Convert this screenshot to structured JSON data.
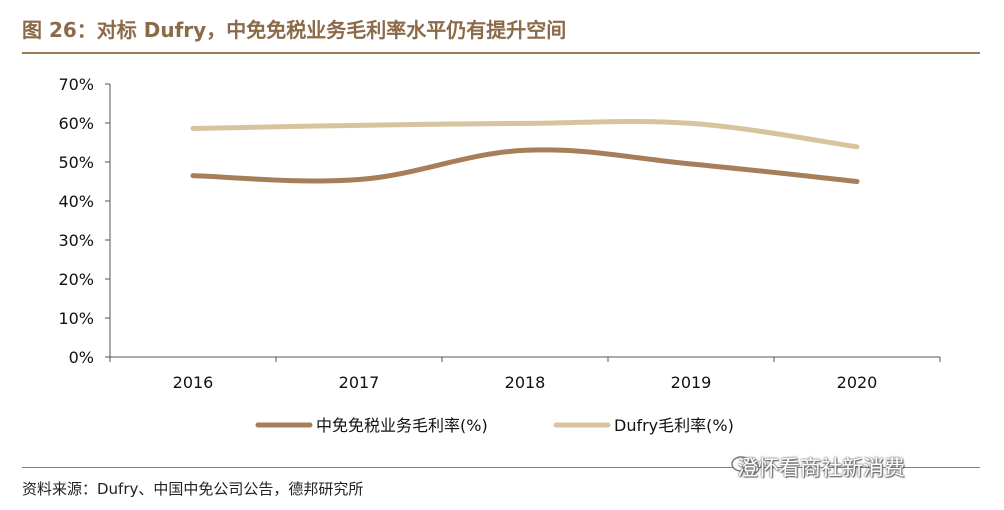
{
  "figure": {
    "title": "图 26：对标 Dufry，中免免税业务毛利率水平仍有提升空间",
    "source": "资料来源：Dufry、中国中免公司公告，德邦研究所",
    "watermark": "澄怀看商社新消费"
  },
  "chart_data": {
    "type": "line",
    "title": "",
    "xlabel": "",
    "ylabel": "",
    "categories": [
      "2016",
      "2017",
      "2018",
      "2019",
      "2020"
    ],
    "y_ticks": [
      "0%",
      "10%",
      "20%",
      "30%",
      "40%",
      "50%",
      "60%",
      "70%"
    ],
    "ylim": [
      0,
      70
    ],
    "grid": false,
    "legend_position": "bottom",
    "series": [
      {
        "name": "中免免税业务毛利率(%)",
        "color": "#a67f5a",
        "values": [
          46.5,
          45.5,
          53.0,
          49.5,
          45.0
        ]
      },
      {
        "name": "Dufry毛利率(%)",
        "color": "#d7c49f",
        "values": [
          58.6,
          59.4,
          59.9,
          59.9,
          53.9
        ]
      }
    ]
  }
}
